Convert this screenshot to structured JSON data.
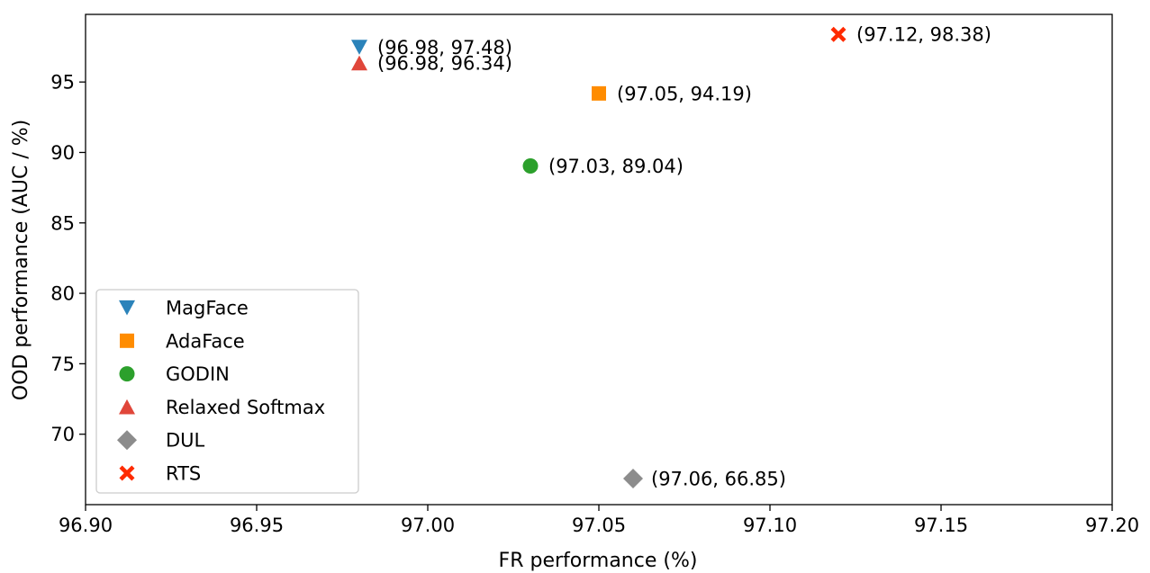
{
  "chart_data": {
    "type": "scatter",
    "title": "",
    "xlabel": "FR performance (%)",
    "ylabel": "OOD performance (AUC / %)",
    "xlim": [
      96.9,
      97.2
    ],
    "ylim": [
      65.0,
      99.8
    ],
    "xticks": [
      96.9,
      96.95,
      97.0,
      97.05,
      97.1,
      97.15,
      97.2
    ],
    "xtick_labels": [
      "96.90",
      "96.95",
      "97.00",
      "97.05",
      "97.10",
      "97.15",
      "97.20"
    ],
    "yticks": [
      70,
      75,
      80,
      85,
      90,
      95
    ],
    "ytick_labels": [
      "70",
      "75",
      "80",
      "85",
      "90",
      "95"
    ],
    "grid": false,
    "legend_position": "lower-left",
    "series": [
      {
        "name": "MagFace",
        "x": 96.98,
        "y": 97.48,
        "label": "(96.98, 97.48)",
        "marker": "triangle-down",
        "color": "#2b83ba"
      },
      {
        "name": "AdaFace",
        "x": 97.05,
        "y": 94.19,
        "label": "(97.05, 94.19)",
        "marker": "square",
        "color": "#ff8c00"
      },
      {
        "name": "GODIN",
        "x": 97.03,
        "y": 89.04,
        "label": "(97.03, 89.04)",
        "marker": "circle",
        "color": "#2ca02c"
      },
      {
        "name": "Relaxed Softmax",
        "x": 96.98,
        "y": 96.34,
        "label": "(96.98, 96.34)",
        "marker": "triangle-up",
        "color": "#e0463a"
      },
      {
        "name": "DUL",
        "x": 97.06,
        "y": 66.85,
        "label": "(97.06, 66.85)",
        "marker": "diamond",
        "color": "#8c8c8c"
      },
      {
        "name": "RTS",
        "x": 97.12,
        "y": 98.38,
        "label": "(97.12, 98.38)",
        "marker": "x-filled",
        "color": "#ff2a00"
      }
    ]
  }
}
